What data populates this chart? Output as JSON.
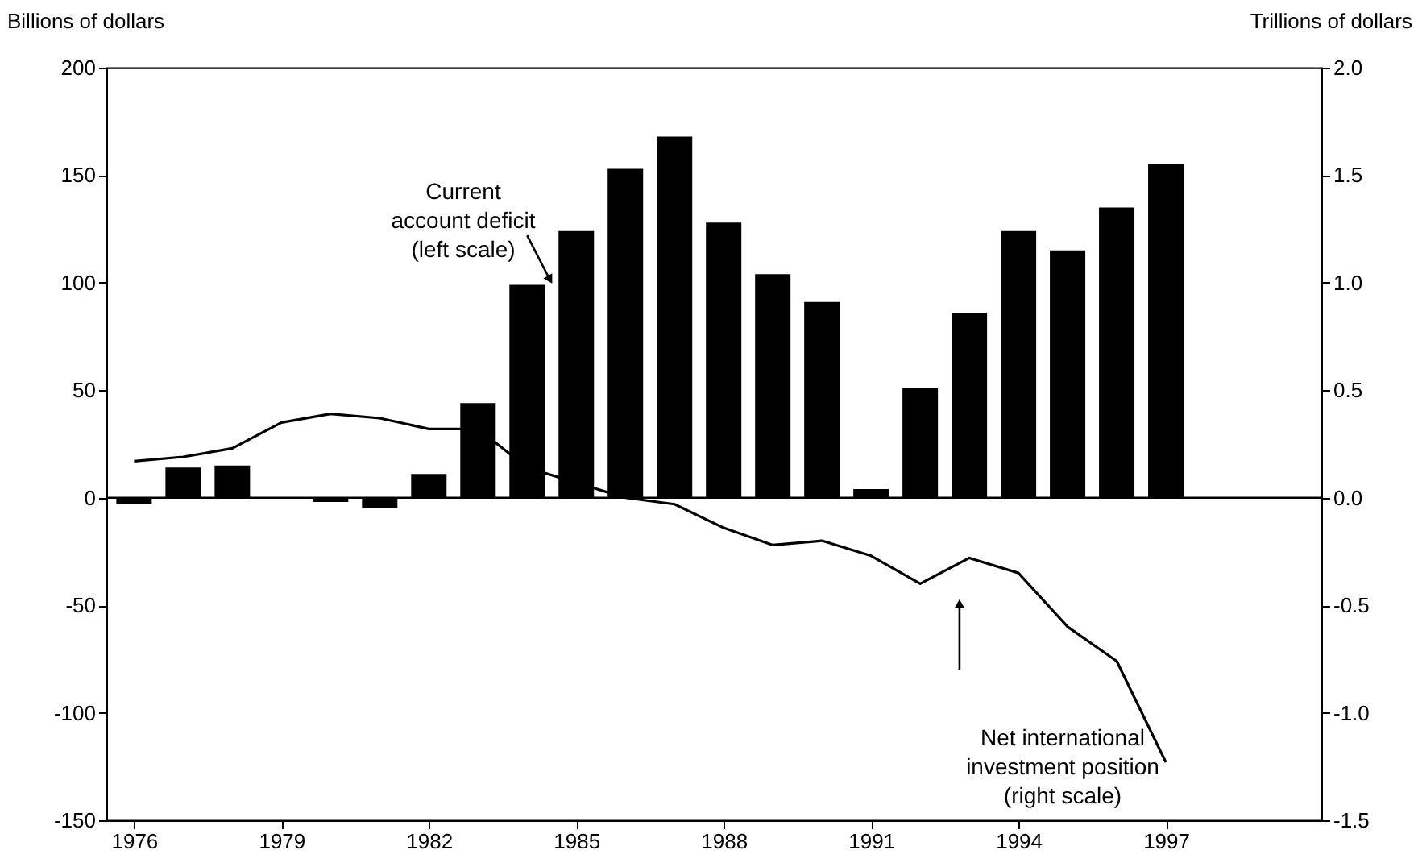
{
  "chart_data": {
    "type": "bar",
    "ylabel": "Billions of dollars",
    "y2label": "Trillions of dollars",
    "x": [
      1976,
      1977,
      1978,
      1979,
      1980,
      1981,
      1982,
      1983,
      1984,
      1985,
      1986,
      1987,
      1988,
      1989,
      1990,
      1991,
      1992,
      1993,
      1994,
      1995,
      1996,
      1997
    ],
    "series": [
      {
        "color": "#000000",
        "values": [
          -3,
          14,
          15,
          0,
          -2,
          -5,
          11,
          44,
          99,
          124,
          153,
          168,
          128,
          104,
          91,
          4,
          51,
          86,
          124,
          115,
          135,
          155
        ]
      },
      {
        "type": "line",
        "axis": "y2",
        "color": "#000000",
        "values": [
          0.17,
          0.19,
          0.23,
          0.35,
          0.39,
          0.37,
          0.32,
          0.32,
          0.14,
          0.07,
          0.0,
          -0.03,
          -0.14,
          -0.22,
          -0.2,
          -0.27,
          -0.4,
          -0.28,
          -0.35,
          -0.6,
          -0.76,
          -1.23
        ]
      }
    ],
    "xlim": [
      1975.6,
      2000
    ],
    "xticks": [
      1976,
      1979,
      1982,
      1985,
      1988,
      1991,
      1994,
      1997
    ],
    "ylim": [
      -150,
      200
    ],
    "yticks": [
      -150,
      -100,
      -50,
      0,
      50,
      100,
      150,
      200
    ],
    "y2lim": [
      -1.5,
      2.0
    ],
    "y2ticks": [
      -1.5,
      {
        "value": -1.0,
        "label": "-1.0"
      },
      -0.5,
      {
        "value": 0.0,
        "label": "0.0"
      },
      0.5,
      {
        "value": 1.0,
        "label": "1.0"
      },
      1.5,
      {
        "value": 2.0,
        "label": "2.0"
      }
    ],
    "ref_lines": [
      {
        "axis": "y",
        "value": 0,
        "color": "#000000"
      }
    ],
    "annotations": [
      {
        "text": "Current\naccount deficit\n(left scale)",
        "x": 1984,
        "y": 99
      },
      "Net international\ninvestment position\n(right scale)"
    ],
    "grid": false
  }
}
